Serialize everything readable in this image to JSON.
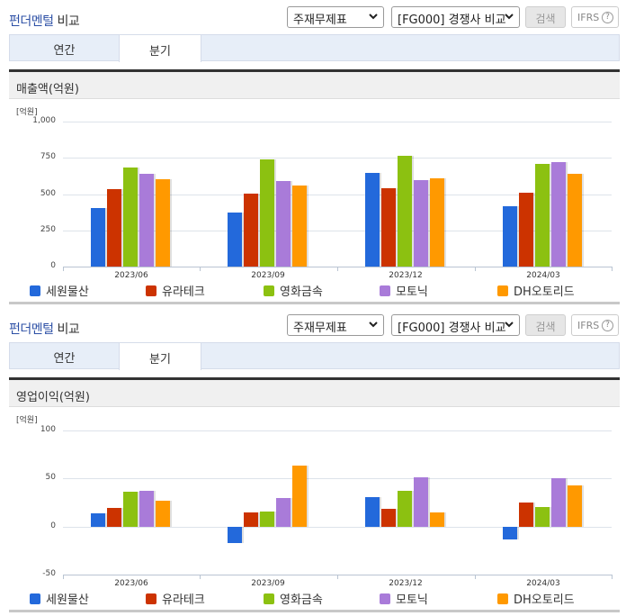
{
  "colors": {
    "series": [
      "#2369db",
      "#cc3300",
      "#8cc111",
      "#a97bd9",
      "#ff9900"
    ],
    "title_blue": "#2c4fa5",
    "tab_bg": "#e7eef8"
  },
  "panels": [
    {
      "title_blue": "펀더멘털",
      "title_rest": " 비교",
      "select1": "주재무제표",
      "select2": "[FG000] 경쟁사 비교",
      "search_label": "검색",
      "ifrs_label": "IFRS",
      "help_glyph": "?",
      "tabs": [
        {
          "label": "연간",
          "active": false
        },
        {
          "label": "분기",
          "active": true
        }
      ],
      "subheader": "매출액(억원)",
      "unit": "[억원]",
      "y_ticks": [
        "1,000",
        "750",
        "500",
        "250",
        "0"
      ]
    },
    {
      "title_blue": "펀더멘털",
      "title_rest": " 비교",
      "select1": "주재무제표",
      "select2": "[FG000] 경쟁사 비교",
      "search_label": "검색",
      "ifrs_label": "IFRS",
      "help_glyph": "?",
      "tabs": [
        {
          "label": "연간",
          "active": false
        },
        {
          "label": "분기",
          "active": true
        }
      ],
      "subheader": "영업이익(억원)",
      "unit": "[억원]",
      "y_ticks": [
        "100",
        "50",
        "0",
        "-50"
      ]
    }
  ],
  "legend": [
    "세원물산",
    "유라테크",
    "영화금속",
    "모토닉",
    "DH오토리드"
  ],
  "chart_data": [
    {
      "type": "bar",
      "title": "매출액(억원)",
      "ylabel": "[억원]",
      "xlabel": "",
      "categories": [
        "2023/06",
        "2023/09",
        "2023/12",
        "2024/03"
      ],
      "ylim": [
        0,
        1000
      ],
      "yticks": [
        0,
        250,
        500,
        750,
        1000
      ],
      "grid": true,
      "legend_position": "bottom",
      "series": [
        {
          "name": "세원물산",
          "values": [
            406,
            375,
            645,
            418
          ]
        },
        {
          "name": "유라테크",
          "values": [
            537,
            506,
            538,
            512
          ]
        },
        {
          "name": "영화금속",
          "values": [
            681,
            737,
            763,
            706
          ]
        },
        {
          "name": "모토닉",
          "values": [
            637,
            593,
            595,
            718
          ]
        },
        {
          "name": "DH오토리드",
          "values": [
            600,
            556,
            607,
            637
          ]
        }
      ]
    },
    {
      "type": "bar",
      "title": "영업이익(억원)",
      "ylabel": "[억원]",
      "xlabel": "",
      "categories": [
        "2023/06",
        "2023/09",
        "2023/12",
        "2024/03"
      ],
      "ylim": [
        -50,
        100
      ],
      "yticks": [
        -50,
        0,
        50,
        100
      ],
      "grid": true,
      "legend_position": "bottom",
      "series": [
        {
          "name": "세원물산",
          "values": [
            14,
            -17,
            31,
            -13
          ]
        },
        {
          "name": "유라테크",
          "values": [
            19,
            15,
            18,
            25
          ]
        },
        {
          "name": "영화금속",
          "values": [
            36,
            16,
            37,
            20
          ]
        },
        {
          "name": "모토닉",
          "values": [
            37,
            30,
            51,
            50
          ]
        },
        {
          "name": "DH오토리드",
          "values": [
            27,
            63,
            15,
            43
          ]
        }
      ]
    }
  ]
}
